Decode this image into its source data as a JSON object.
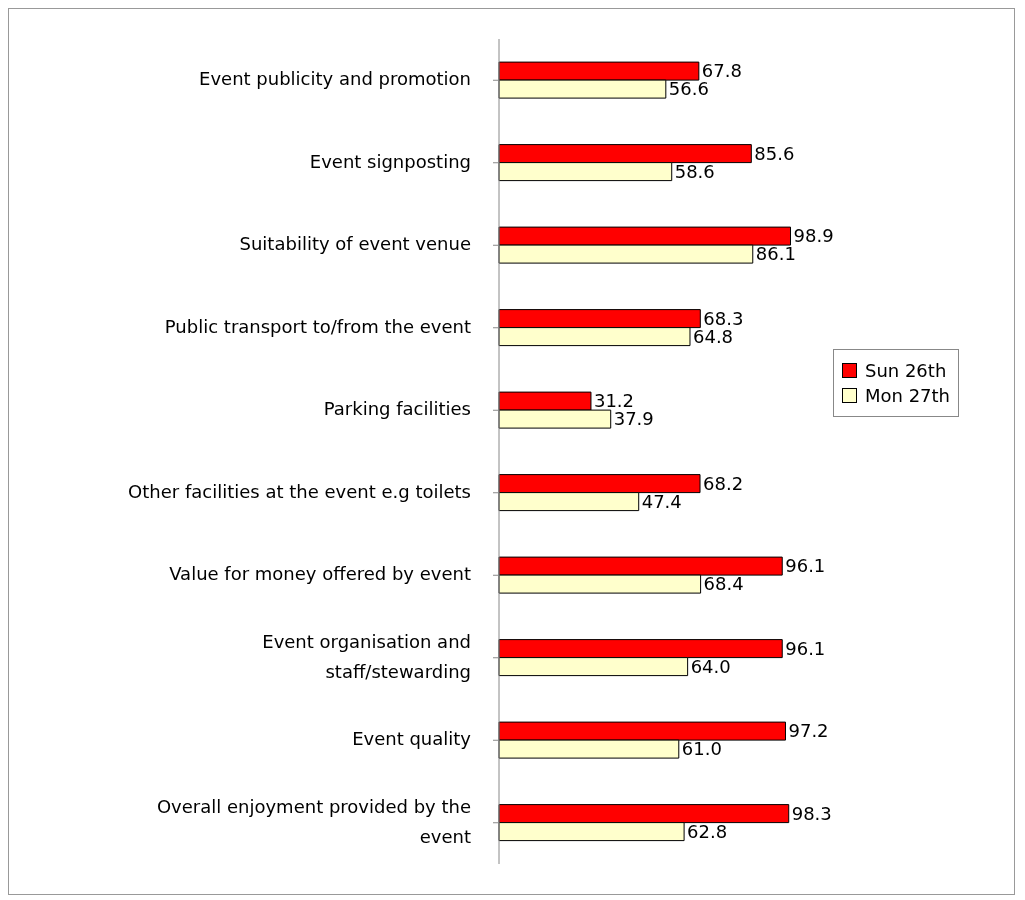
{
  "chart_data": {
    "type": "bar",
    "orientation": "horizontal",
    "legend": "right",
    "categories": [
      "Event publicity and promotion",
      "Event signposting",
      "Suitability of event venue",
      "Public transport to/from the event",
      "Parking facilities",
      "Other facilities at the event e.g toilets",
      "Value for money offered by event",
      "Event organisation and\nstaff/stewarding",
      "Event quality",
      "Overall enjoyment provided by the\nevent"
    ],
    "series": [
      {
        "name": "Sun 26th",
        "color": "#ff0000",
        "values": [
          67.8,
          85.6,
          98.9,
          68.3,
          31.2,
          68.2,
          96.1,
          96.1,
          97.2,
          98.3
        ],
        "value_labels": [
          "67.8",
          "85.6",
          "98.9",
          "68.3",
          "31.2",
          "68.2",
          "96.1",
          "96.1",
          "97.2",
          "98.3"
        ]
      },
      {
        "name": "Mon 27th",
        "color": "#ffffcc",
        "values": [
          56.6,
          58.6,
          86.1,
          64.8,
          37.9,
          47.4,
          68.4,
          64.0,
          61.0,
          62.8
        ],
        "value_labels": [
          "56.6",
          "58.6",
          "86.1",
          "64.8",
          "37.9",
          "47.4",
          "68.4",
          "64.0",
          "61.0",
          "62.8"
        ]
      }
    ]
  }
}
